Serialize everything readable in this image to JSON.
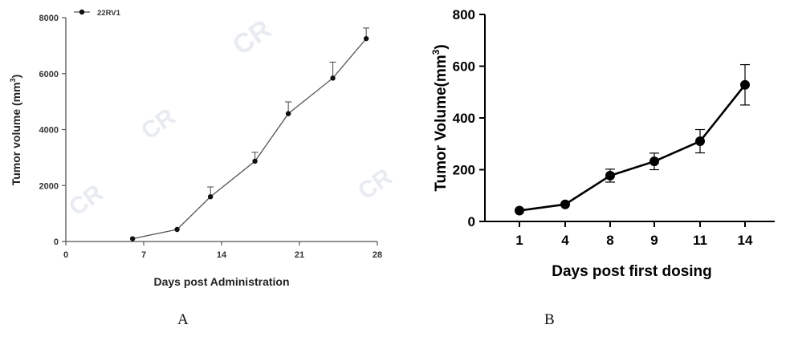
{
  "chart_data": [
    {
      "panel": "A",
      "type": "line",
      "xlabel": "Days post Administration",
      "ylabel": "Tumor volume (mm",
      "ylabel_sup": "3",
      "ylabel_tail": ")",
      "xlim": [
        0,
        28
      ],
      "ylim": [
        0,
        8000
      ],
      "xticks": [
        0,
        7,
        14,
        21,
        28
      ],
      "yticks": [
        0,
        2000,
        4000,
        6000,
        8000
      ],
      "grid": false,
      "legend": "top-left",
      "series": [
        {
          "name": "22RV1",
          "color": "#555555",
          "points": [
            {
              "x": 6,
              "y": 100,
              "err": 0
            },
            {
              "x": 10,
              "y": 430,
              "err": 0
            },
            {
              "x": 13,
              "y": 1600,
              "err": 350
            },
            {
              "x": 17,
              "y": 2870,
              "err": 320
            },
            {
              "x": 20,
              "y": 4570,
              "err": 420
            },
            {
              "x": 24,
              "y": 5840,
              "err": 570
            },
            {
              "x": 27,
              "y": 7250,
              "err": 380
            }
          ]
        }
      ]
    },
    {
      "panel": "B",
      "type": "line",
      "xlabel": "Days post first dosing",
      "ylabel": "Tumor Volume(mm",
      "ylabel_sup": "3",
      "ylabel_tail": ")",
      "categories": [
        "1",
        "4",
        "8",
        "9",
        "11",
        "14"
      ],
      "ylim": [
        0,
        800
      ],
      "yticks": [
        0,
        200,
        400,
        600,
        800
      ],
      "grid": false,
      "series": [
        {
          "color": "#000000",
          "values": [
            42,
            66,
            177,
            232,
            310,
            528
          ],
          "errors": [
            0,
            0,
            25,
            32,
            45,
            78
          ]
        }
      ]
    }
  ],
  "captions": {
    "a": "A",
    "b": "B"
  }
}
